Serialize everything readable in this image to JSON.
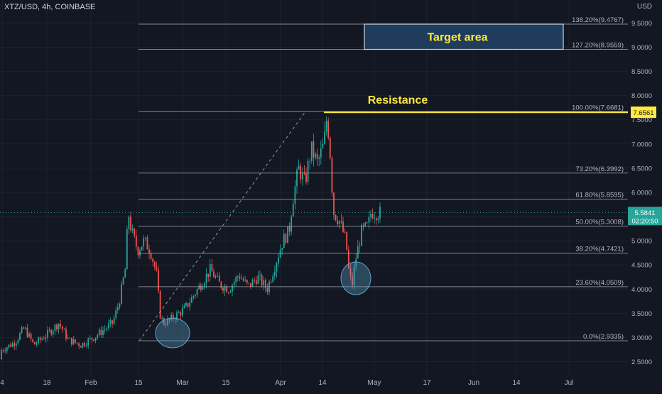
{
  "header": {
    "symbol": "XTZ/USD, 4h, COINBASE",
    "currency": "USD"
  },
  "annotations": {
    "target_label": "Target area",
    "resistance_label": "Resistance"
  },
  "price_tag": {
    "price": "5.5841",
    "countdown": "02:20:50"
  },
  "resistance_tag": "7.6561",
  "colors": {
    "background": "#131722",
    "up": "#26a69a",
    "down": "#ef5350",
    "fib": "#b2b5be",
    "resistance": "#ffeb3b",
    "target_fill": "#1f3c5c",
    "circle": "#5ba3c9"
  },
  "chart_data": {
    "type": "candlestick",
    "title": "XTZ/USD, 4h, COINBASE",
    "ylabel": "USD",
    "ylim": [
      2.35,
      9.95
    ],
    "y_ticks": [
      "2.5000",
      "3.0000",
      "3.5000",
      "4.0000",
      "4.5000",
      "5.0000",
      "5.5000",
      "6.0000",
      "6.5000",
      "7.0000",
      "7.5000",
      "8.0000",
      "8.5000",
      "9.0000",
      "9.5000"
    ],
    "x_ticks": [
      "4",
      "18",
      "Feb",
      "15",
      "Mar",
      "15",
      "Apr",
      "14",
      "May",
      "17",
      "Jun",
      "14",
      "Jul"
    ],
    "fib_levels": [
      {
        "label": "0.0%(2.9335)",
        "value": 2.9335
      },
      {
        "label": "23.60%(4.0509)",
        "value": 4.0509
      },
      {
        "label": "38.20%(4.7421)",
        "value": 4.7421
      },
      {
        "label": "50.00%(5.3008)",
        "value": 5.3008
      },
      {
        "label": "61.80%(5.8595)",
        "value": 5.8595
      },
      {
        "label": "73.20%(6.3992)",
        "value": 6.3992
      },
      {
        "label": "100.00%(7.6681)",
        "value": 7.6681
      },
      {
        "label": "127.20%(8.9559)",
        "value": 8.9559
      },
      {
        "label": "138.20%(9.4767)",
        "value": 9.4767
      }
    ],
    "resistance_level": 7.6561,
    "current_price": 5.5841,
    "price_path": [
      {
        "x": "Dec 28",
        "y": 2.55
      },
      {
        "x": "Jan 4",
        "y": 2.75
      },
      {
        "x": "Jan 8",
        "y": 2.9
      },
      {
        "x": "Jan 11",
        "y": 3.2
      },
      {
        "x": "Jan 14",
        "y": 2.85
      },
      {
        "x": "Jan 18",
        "y": 3.05
      },
      {
        "x": "Jan 22",
        "y": 3.3
      },
      {
        "x": "Jan 25",
        "y": 2.95
      },
      {
        "x": "Jan 29",
        "y": 2.85
      },
      {
        "x": "Feb 2",
        "y": 3.0
      },
      {
        "x": "Feb 5",
        "y": 3.15
      },
      {
        "x": "Feb 8",
        "y": 3.3
      },
      {
        "x": "Feb 10",
        "y": 3.7
      },
      {
        "x": "Feb 12",
        "y": 4.4
      },
      {
        "x": "Feb 13",
        "y": 5.6
      },
      {
        "x": "Feb 14",
        "y": 5.2
      },
      {
        "x": "Feb 16",
        "y": 4.8
      },
      {
        "x": "Feb 18",
        "y": 5.0
      },
      {
        "x": "Feb 20",
        "y": 4.8
      },
      {
        "x": "Feb 22",
        "y": 4.3
      },
      {
        "x": "Feb 23",
        "y": 3.5
      },
      {
        "x": "Feb 24",
        "y": 3.3
      },
      {
        "x": "Feb 26",
        "y": 3.35
      },
      {
        "x": "Feb 28",
        "y": 3.45
      },
      {
        "x": "Mar 3",
        "y": 3.6
      },
      {
        "x": "Mar 6",
        "y": 3.9
      },
      {
        "x": "Mar 9",
        "y": 4.2
      },
      {
        "x": "Mar 11",
        "y": 4.4
      },
      {
        "x": "Mar 14",
        "y": 4.1
      },
      {
        "x": "Mar 17",
        "y": 4.0
      },
      {
        "x": "Mar 20",
        "y": 4.3
      },
      {
        "x": "Mar 23",
        "y": 4.05
      },
      {
        "x": "Mar 26",
        "y": 4.25
      },
      {
        "x": "Mar 29",
        "y": 4.0
      },
      {
        "x": "Apr 1",
        "y": 4.6
      },
      {
        "x": "Apr 3",
        "y": 5.0
      },
      {
        "x": "Apr 5",
        "y": 5.2
      },
      {
        "x": "Apr 6",
        "y": 5.8
      },
      {
        "x": "Apr 8",
        "y": 6.5
      },
      {
        "x": "Apr 10",
        "y": 6.2
      },
      {
        "x": "Apr 12",
        "y": 6.9
      },
      {
        "x": "Apr 14",
        "y": 6.6
      },
      {
        "x": "Apr 16",
        "y": 7.0
      },
      {
        "x": "Apr 17",
        "y": 7.6
      },
      {
        "x": "Apr 18",
        "y": 6.8
      },
      {
        "x": "Apr 19",
        "y": 5.6
      },
      {
        "x": "Apr 21",
        "y": 5.4
      },
      {
        "x": "Apr 23",
        "y": 5.0
      },
      {
        "x": "Apr 24",
        "y": 4.3
      },
      {
        "x": "Apr 25",
        "y": 4.1
      },
      {
        "x": "Apr 26",
        "y": 4.6
      },
      {
        "x": "Apr 28",
        "y": 5.2
      },
      {
        "x": "Apr 30",
        "y": 5.3
      },
      {
        "x": "May 1",
        "y": 5.6
      },
      {
        "x": "May 2",
        "y": 5.58
      }
    ]
  }
}
